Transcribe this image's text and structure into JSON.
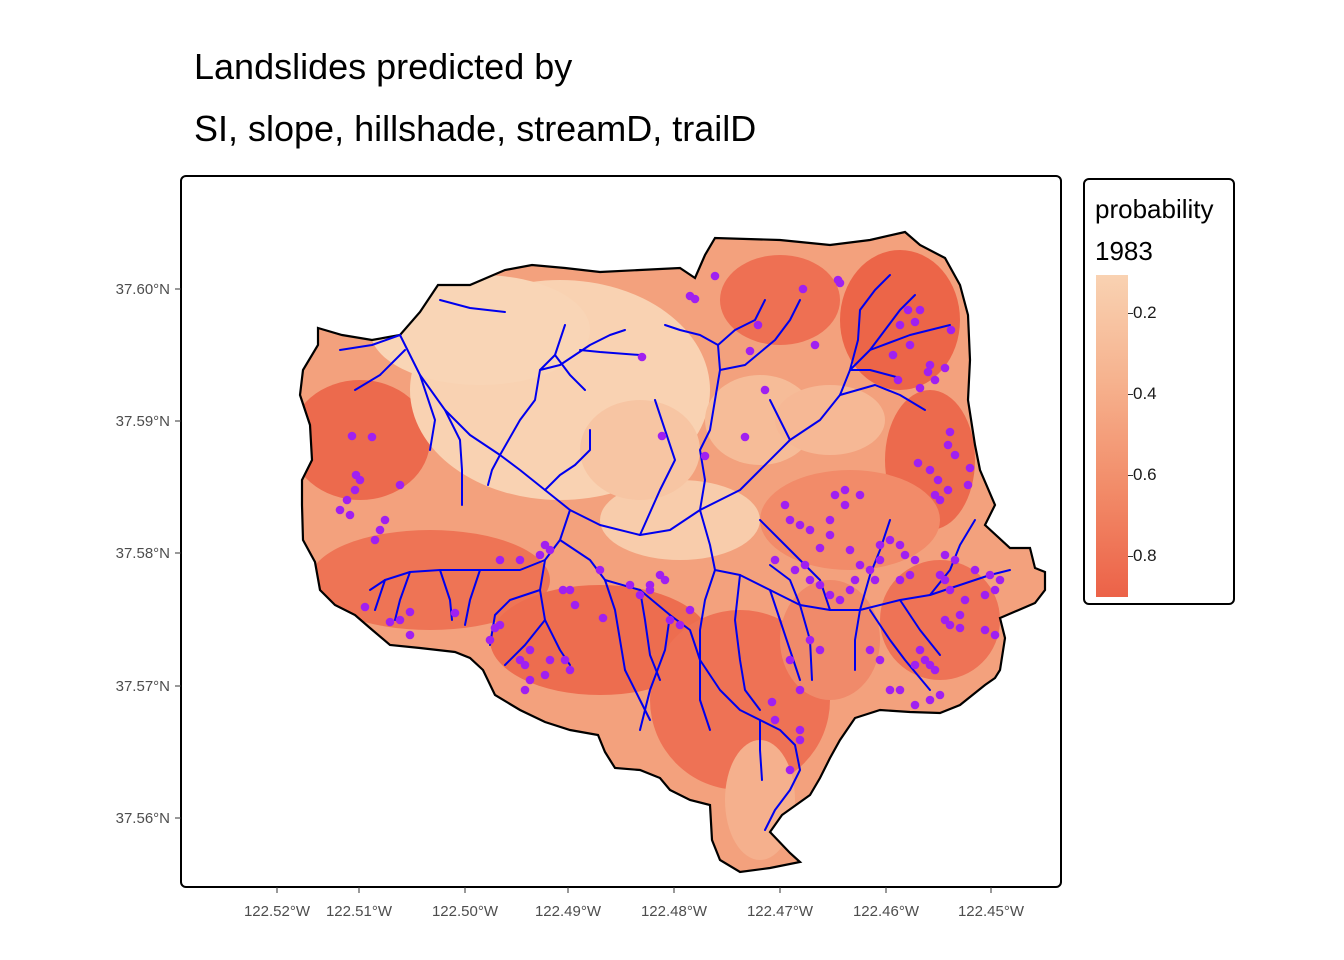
{
  "title": {
    "line1": "Landslides predicted by",
    "line2": "SI, slope, hillshade, streamD, trailD"
  },
  "legend": {
    "title_line1": "probability",
    "title_line2": "1983",
    "ticks": [
      "0.2",
      "0.4",
      "0.6",
      "0.8"
    ]
  },
  "axes": {
    "x_ticks": [
      "122.52°W",
      "122.51°W",
      "122.50°W",
      "122.49°W",
      "122.48°W",
      "122.47°W",
      "122.46°W",
      "122.45°W"
    ],
    "y_ticks": [
      "37.60°N",
      "37.59°N",
      "37.58°N",
      "37.57°N",
      "37.56°N"
    ]
  },
  "colors": {
    "low_probability": "#f9d2b2",
    "high_probability": "#ec6248",
    "streams": "#0000ee",
    "landslide_points": "#a020f0",
    "boundary": "#000000"
  }
}
